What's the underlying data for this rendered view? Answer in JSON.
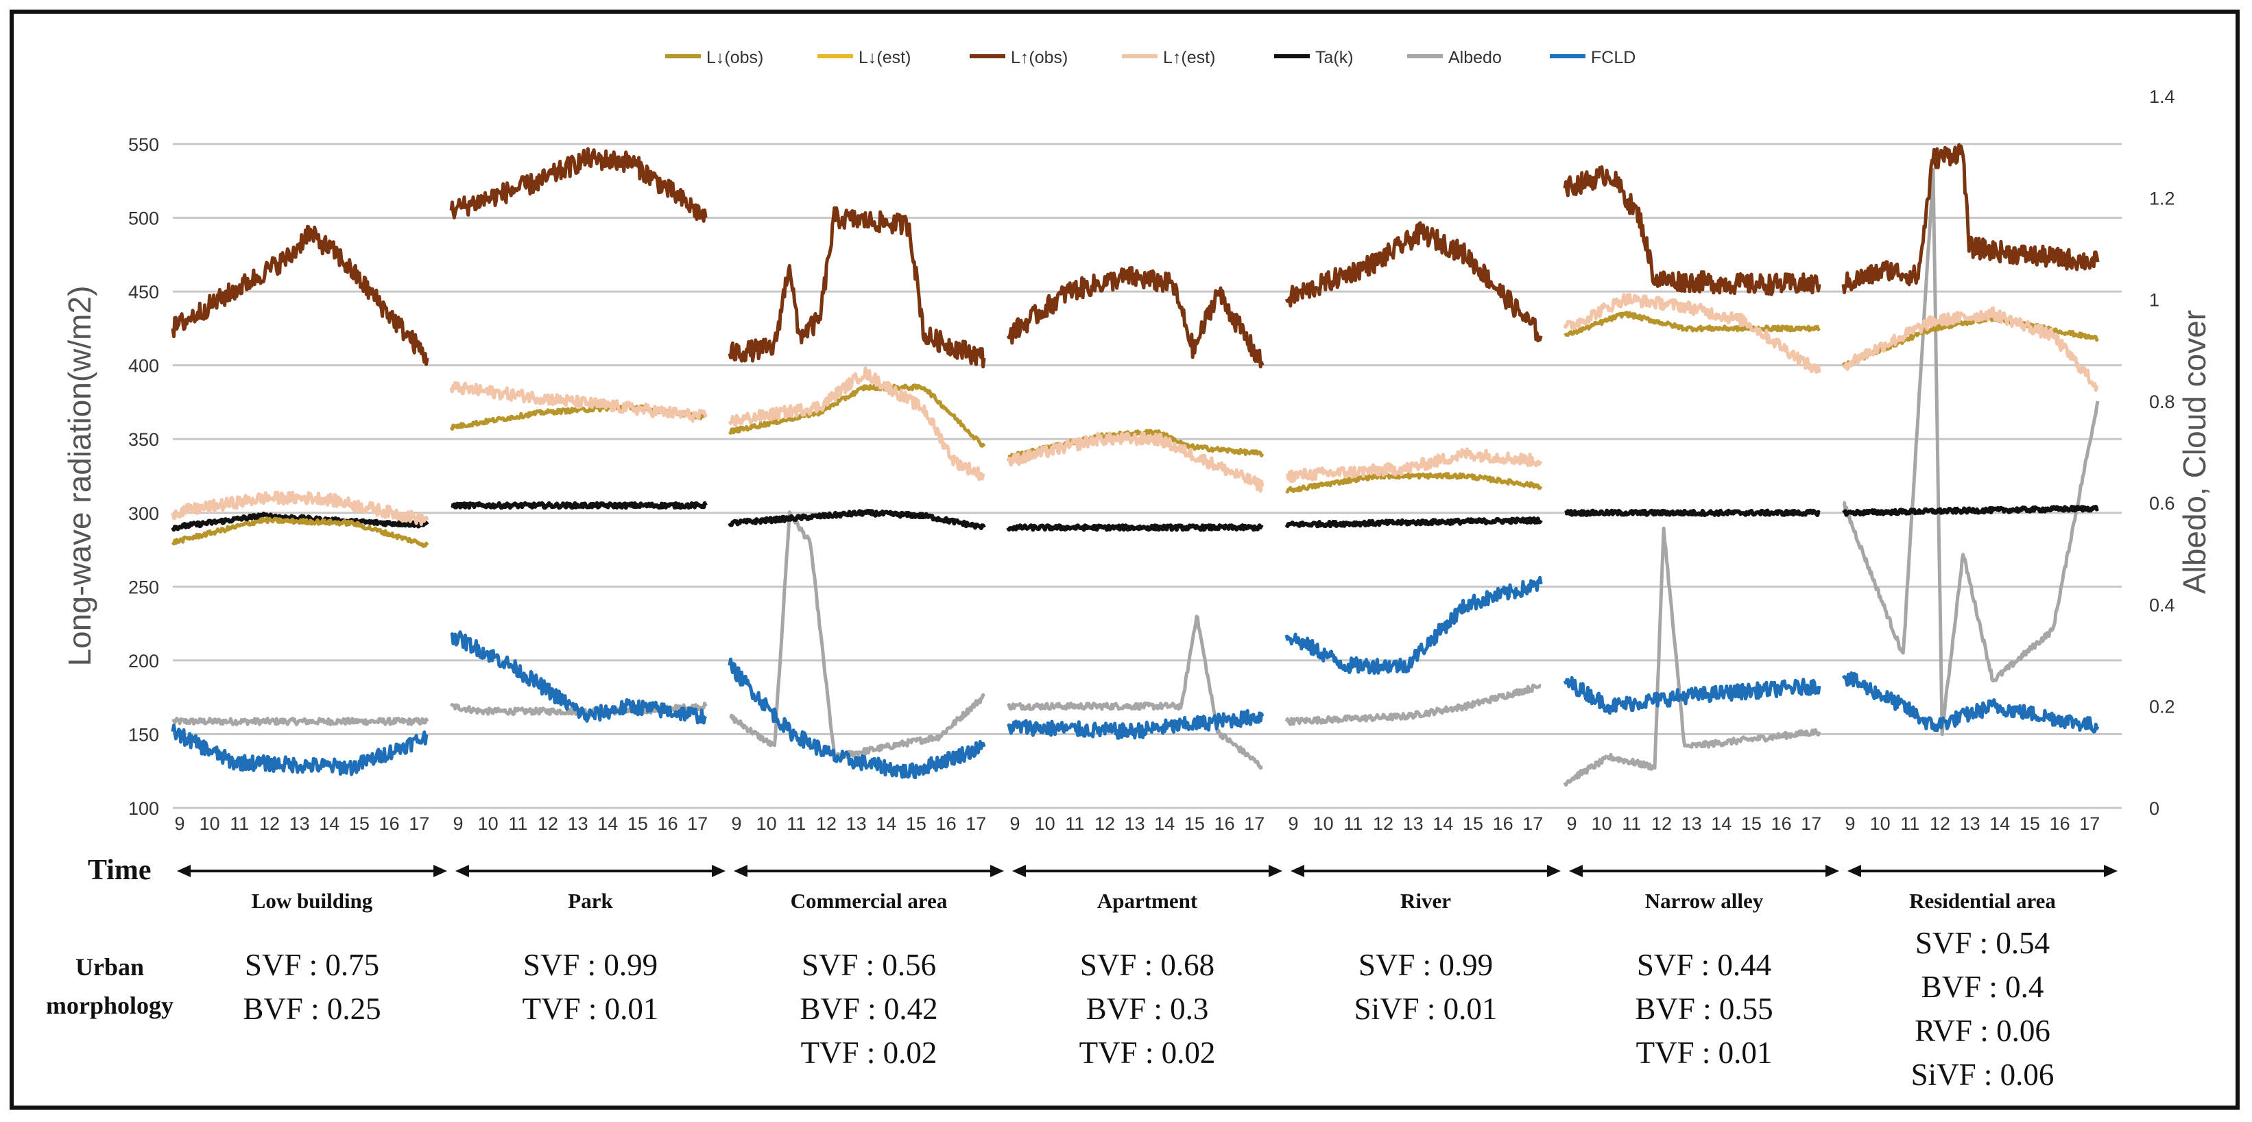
{
  "chart_data": {
    "type": "line",
    "legend": {
      "placement": "top-center",
      "entries": [
        {
          "key": "Ldn_obs",
          "label": "L↓(obs)",
          "color": "#B8952A"
        },
        {
          "key": "Ldn_est",
          "label": "L↓(est)",
          "color": "#E8B828"
        },
        {
          "key": "Lup_obs",
          "label": "L↑(obs)",
          "color": "#7A3410"
        },
        {
          "key": "Lup_est",
          "label": "L↑(est)",
          "color": "#F2C4A8"
        },
        {
          "key": "Ta",
          "label": "Ta(k)",
          "color": "#111111"
        },
        {
          "key": "Albedo",
          "label": "Albedo",
          "color": "#A6A6A6"
        },
        {
          "key": "FCLD",
          "label": "FCLD",
          "color": "#1E6EB8"
        }
      ]
    },
    "y_left": {
      "label": "Long-wave radiation(w/m2)",
      "min": 100,
      "max": 550,
      "ticks": [
        100,
        150,
        200,
        250,
        300,
        350,
        400,
        450,
        500,
        550
      ]
    },
    "y_right": {
      "label": "Albedo, Cloud cover",
      "min": 0,
      "max": 1.4,
      "ticks": [
        "0",
        "0.2",
        "0.4",
        "0.6",
        "0.8",
        "1",
        "1.2",
        "1.4"
      ]
    },
    "x_hours": [
      "9",
      "10",
      "11",
      "12",
      "13",
      "14",
      "15",
      "16",
      "17"
    ],
    "x_label": "Time",
    "gridlines": true,
    "sites": [
      {
        "name": "Low building",
        "Lup_obs": [
          [
            0,
            425
          ],
          [
            4,
            475
          ],
          [
            4.5,
            490
          ],
          [
            5.5,
            475
          ],
          [
            8.5,
            405
          ]
        ],
        "Lup_est": [
          [
            0,
            300
          ],
          [
            3,
            310
          ],
          [
            5,
            310
          ],
          [
            8.5,
            295
          ]
        ],
        "Ldn_obs": [
          [
            0,
            280
          ],
          [
            3,
            295
          ],
          [
            6,
            293
          ],
          [
            8.5,
            278
          ]
        ],
        "Ta": [
          [
            0,
            290
          ],
          [
            3,
            298
          ],
          [
            6,
            294
          ],
          [
            8.5,
            292
          ]
        ],
        "Albedo": [
          [
            0,
            0.17
          ],
          [
            8.5,
            0.17
          ]
        ],
        "FCLD": [
          [
            0,
            0.15
          ],
          [
            2,
            0.09
          ],
          [
            6,
            0.08
          ],
          [
            8.5,
            0.14
          ]
        ]
      },
      {
        "name": "Park",
        "Lup_obs": [
          [
            0,
            505
          ],
          [
            3,
            525
          ],
          [
            4.5,
            540
          ],
          [
            6,
            538
          ],
          [
            8.5,
            500
          ]
        ],
        "Lup_est": [
          [
            0,
            385
          ],
          [
            8.5,
            365
          ]
        ],
        "Ldn_obs": [
          [
            0,
            358
          ],
          [
            3,
            368
          ],
          [
            6,
            372
          ],
          [
            8.5,
            365
          ]
        ],
        "Ta": [
          [
            0,
            305
          ],
          [
            8.5,
            305
          ]
        ],
        "Albedo": [
          [
            0,
            0.2
          ],
          [
            1,
            0.19
          ],
          [
            6,
            0.19
          ],
          [
            8.5,
            0.2
          ]
        ],
        "FCLD": [
          [
            0,
            0.34
          ],
          [
            2,
            0.28
          ],
          [
            4.5,
            0.18
          ],
          [
            6,
            0.2
          ],
          [
            8.5,
            0.18
          ]
        ]
      },
      {
        "name": "Commercial area",
        "Lup_obs": [
          [
            0,
            408
          ],
          [
            1.5,
            412
          ],
          [
            2,
            470
          ],
          [
            2.3,
            420
          ],
          [
            3,
            430
          ],
          [
            3.5,
            500
          ],
          [
            6,
            495
          ],
          [
            6.5,
            420
          ],
          [
            8.5,
            405
          ]
        ],
        "Lup_est": [
          [
            0,
            362
          ],
          [
            3,
            372
          ],
          [
            4.5,
            395
          ],
          [
            6.5,
            370
          ],
          [
            7.5,
            335
          ],
          [
            8.5,
            325
          ]
        ],
        "Ldn_obs": [
          [
            0,
            355
          ],
          [
            3,
            368
          ],
          [
            4.5,
            385
          ],
          [
            6.5,
            385
          ],
          [
            8.5,
            345
          ]
        ],
        "Ta": [
          [
            0,
            293
          ],
          [
            4.5,
            300
          ],
          [
            6.5,
            298
          ],
          [
            8.5,
            290
          ]
        ],
        "Albedo": [
          [
            0,
            0.18
          ],
          [
            1.5,
            0.12
          ],
          [
            2,
            0.58
          ],
          [
            2.7,
            0.52
          ],
          [
            3.5,
            0.1
          ],
          [
            7,
            0.14
          ],
          [
            8.5,
            0.22
          ]
        ],
        "FCLD": [
          [
            0,
            0.28
          ],
          [
            2,
            0.15
          ],
          [
            3.5,
            0.1
          ],
          [
            6,
            0.07
          ],
          [
            8.5,
            0.12
          ]
        ]
      },
      {
        "name": "Apartment",
        "Lup_obs": [
          [
            0,
            420
          ],
          [
            2,
            450
          ],
          [
            4,
            460
          ],
          [
            5.5,
            455
          ],
          [
            6.2,
            410
          ],
          [
            7,
            450
          ],
          [
            8.5,
            400
          ]
        ],
        "Lup_est": [
          [
            0,
            335
          ],
          [
            3,
            350
          ],
          [
            5,
            350
          ],
          [
            8.5,
            318
          ]
        ],
        "Ldn_obs": [
          [
            0,
            338
          ],
          [
            3,
            352
          ],
          [
            5,
            355
          ],
          [
            6,
            345
          ],
          [
            8.5,
            340
          ]
        ],
        "Ta": [
          [
            0,
            290
          ],
          [
            8.5,
            290
          ]
        ],
        "Albedo": [
          [
            0,
            0.2
          ],
          [
            5.8,
            0.2
          ],
          [
            6.3,
            0.38
          ],
          [
            7,
            0.15
          ],
          [
            8.5,
            0.08
          ]
        ],
        "FCLD": [
          [
            0,
            0.16
          ],
          [
            4,
            0.15
          ],
          [
            8.5,
            0.18
          ]
        ]
      },
      {
        "name": "River",
        "Lup_obs": [
          [
            0,
            445
          ],
          [
            3,
            470
          ],
          [
            4.5,
            490
          ],
          [
            6,
            475
          ],
          [
            8.5,
            420
          ]
        ],
        "Lup_est": [
          [
            0,
            325
          ],
          [
            4,
            330
          ],
          [
            6,
            340
          ],
          [
            8.5,
            335
          ]
        ],
        "Ldn_obs": [
          [
            0,
            315
          ],
          [
            3,
            325
          ],
          [
            6,
            325
          ],
          [
            8.5,
            318
          ]
        ],
        "Ta": [
          [
            0,
            292
          ],
          [
            8.5,
            295
          ]
        ],
        "Albedo": [
          [
            0,
            0.17
          ],
          [
            4,
            0.18
          ],
          [
            6,
            0.2
          ],
          [
            8.5,
            0.24
          ]
        ],
        "FCLD": [
          [
            0,
            0.34
          ],
          [
            2,
            0.28
          ],
          [
            4,
            0.28
          ],
          [
            6,
            0.4
          ],
          [
            8.5,
            0.44
          ]
        ]
      },
      {
        "name": "Narrow alley",
        "Lup_obs": [
          [
            0,
            520
          ],
          [
            1.5,
            530
          ],
          [
            2.5,
            500
          ],
          [
            3,
            458
          ],
          [
            6,
            455
          ],
          [
            8.5,
            455
          ]
        ],
        "Lup_est": [
          [
            0,
            425
          ],
          [
            2,
            445
          ],
          [
            4,
            440
          ],
          [
            6,
            430
          ],
          [
            8.5,
            395
          ]
        ],
        "Ldn_obs": [
          [
            0,
            420
          ],
          [
            2,
            435
          ],
          [
            4,
            425
          ],
          [
            8.5,
            425
          ]
        ],
        "Ta": [
          [
            0,
            300
          ],
          [
            8.5,
            300
          ]
        ],
        "Albedo": [
          [
            0,
            0.05
          ],
          [
            1.5,
            0.1
          ],
          [
            3,
            0.08
          ],
          [
            3.3,
            0.55
          ],
          [
            4,
            0.12
          ],
          [
            8.5,
            0.15
          ]
        ],
        "FCLD": [
          [
            0,
            0.25
          ],
          [
            1.5,
            0.2
          ],
          [
            4,
            0.22
          ],
          [
            8.5,
            0.24
          ]
        ]
      },
      {
        "name": "Residential area",
        "Lup_obs": [
          [
            0,
            455
          ],
          [
            1.5,
            465
          ],
          [
            2.5,
            460
          ],
          [
            3,
            540
          ],
          [
            4,
            545
          ],
          [
            4.2,
            480
          ],
          [
            6,
            475
          ],
          [
            8.5,
            470
          ]
        ],
        "Lup_est": [
          [
            0,
            400
          ],
          [
            3,
            430
          ],
          [
            5,
            435
          ],
          [
            7,
            420
          ],
          [
            8.5,
            385
          ]
        ],
        "Ldn_obs": [
          [
            0,
            400
          ],
          [
            3,
            425
          ],
          [
            5,
            432
          ],
          [
            8.5,
            418
          ]
        ],
        "Ta": [
          [
            0,
            300
          ],
          [
            8.5,
            303
          ]
        ],
        "Albedo": [
          [
            0,
            0.6
          ],
          [
            1,
            0.45
          ],
          [
            2,
            0.3
          ],
          [
            3,
            1.25
          ],
          [
            3.3,
            0.15
          ],
          [
            4,
            0.5
          ],
          [
            5,
            0.25
          ],
          [
            7,
            0.35
          ],
          [
            8.5,
            0.8
          ]
        ],
        "FCLD": [
          [
            0,
            0.26
          ],
          [
            2,
            0.2
          ],
          [
            3,
            0.16
          ],
          [
            5,
            0.2
          ],
          [
            8.5,
            0.16
          ]
        ]
      }
    ],
    "morphology": [
      {
        "lines": [
          "SVF : 0.75",
          "BVF : 0.25"
        ]
      },
      {
        "lines": [
          "SVF : 0.99",
          "TVF : 0.01"
        ]
      },
      {
        "lines": [
          "SVF : 0.56",
          "BVF : 0.42",
          "TVF : 0.02"
        ]
      },
      {
        "lines": [
          "SVF : 0.68",
          "BVF : 0.3",
          "TVF : 0.02"
        ]
      },
      {
        "lines": [
          "SVF : 0.99",
          "SiVF : 0.01"
        ]
      },
      {
        "lines": [
          "SVF : 0.44",
          "BVF : 0.55",
          "TVF : 0.01"
        ]
      },
      {
        "lines": [
          "SVF : 0.54",
          "BVF : 0.4",
          "RVF : 0.06",
          "SiVF : 0.06"
        ]
      }
    ]
  },
  "morphology_label": {
    "line1": "Urban",
    "line2": "morphology"
  }
}
